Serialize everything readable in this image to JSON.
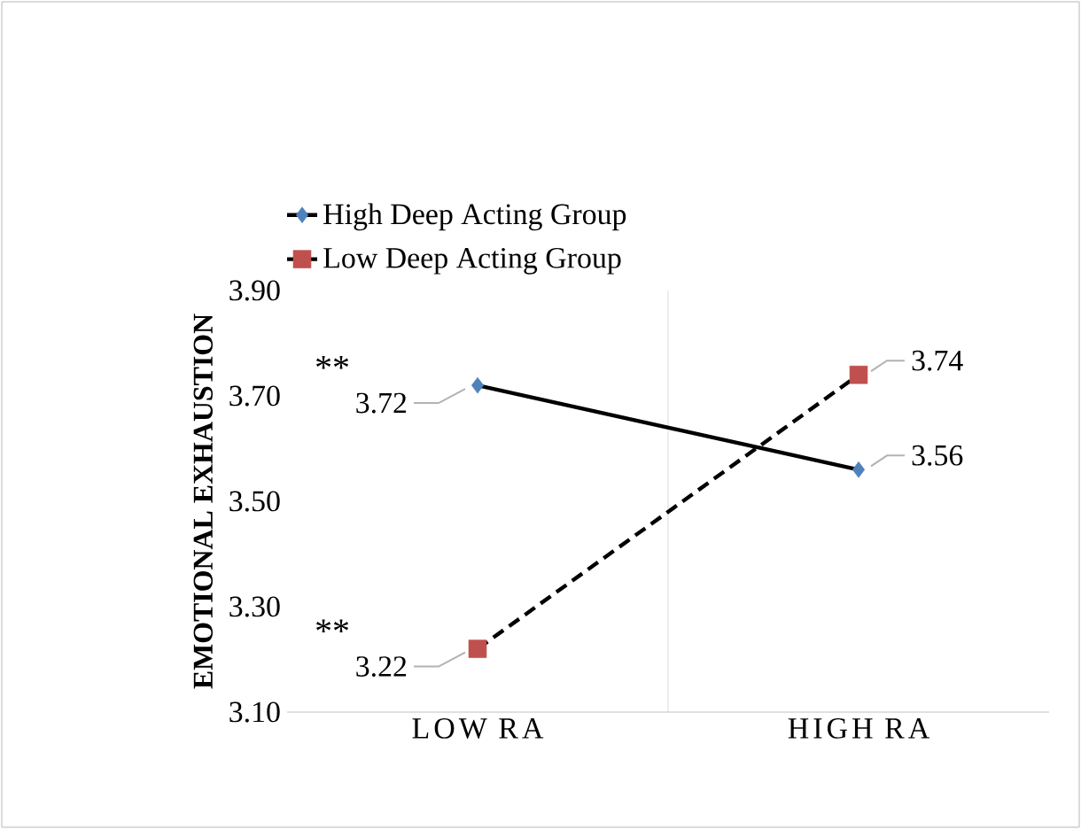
{
  "chart_data": {
    "type": "line",
    "ylabel": "EMOTIONAL EXHAUSTION",
    "categories": [
      "LOW RA",
      "HIGH RA"
    ],
    "series": [
      {
        "name": "High Deep Acting Group",
        "color": "#4f81bd",
        "values": [
          3.72,
          3.56
        ],
        "marker": "diamond",
        "line_style": "solid",
        "value_labels": [
          "3.72",
          "3.56"
        ]
      },
      {
        "name": "Low Deep Acting Group",
        "color": "#c0504d",
        "values": [
          3.22,
          3.74
        ],
        "marker": "square",
        "line_style": "dashed",
        "value_labels": [
          "3.22",
          "3.74"
        ]
      }
    ],
    "ylim": [
      3.1,
      3.9
    ],
    "yticks": [
      {
        "value": 3.1,
        "label": "3.10"
      },
      {
        "value": 3.3,
        "label": "3.30"
      },
      {
        "value": 3.5,
        "label": "3.50"
      },
      {
        "value": 3.7,
        "label": "3.70"
      },
      {
        "value": 3.9,
        "label": "3.90"
      }
    ],
    "grid": "x",
    "legend": "top",
    "annotations": [
      "**",
      "**"
    ]
  }
}
